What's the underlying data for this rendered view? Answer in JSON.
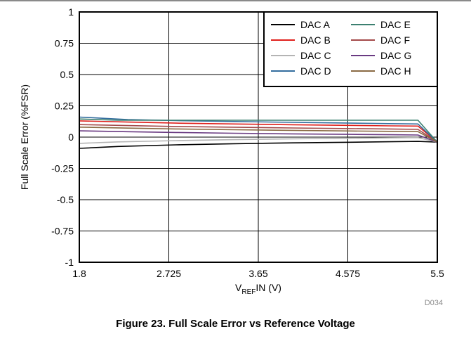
{
  "chart_data": {
    "type": "line",
    "ylabel": "Full Scale Error (%FSR)",
    "xlabel": {
      "base": "V",
      "subscript": "REF",
      "rest": "IN (V)"
    },
    "xlim": [
      1.8,
      5.5
    ],
    "ylim": [
      -1,
      1
    ],
    "x_ticks": [
      "1.8",
      "2.725",
      "3.65",
      "4.575",
      "5.5"
    ],
    "y_ticks": [
      "1",
      "0.75",
      "0.5",
      "0.25",
      "0",
      "-0.25",
      "-0.5",
      "-0.75",
      "-1"
    ],
    "grid": true,
    "legend_placement": "top-right",
    "series": [
      {
        "name": "DAC A",
        "color": "#000000",
        "x": [
          1.8,
          2.2,
          2.8,
          3.4,
          4.0,
          4.6,
          5.0,
          5.3,
          5.5
        ],
        "y": [
          -0.09,
          -0.075,
          -0.062,
          -0.053,
          -0.046,
          -0.041,
          -0.037,
          -0.034,
          -0.04
        ]
      },
      {
        "name": "DAC B",
        "color": "#e0201c",
        "x": [
          1.8,
          2.3,
          2.8,
          3.4,
          4.0,
          4.6,
          5.0,
          5.3,
          5.5
        ],
        "y": [
          0.13,
          0.12,
          0.112,
          0.105,
          0.099,
          0.094,
          0.09,
          0.088,
          -0.04
        ]
      },
      {
        "name": "DAC C",
        "color": "#b4b4b4",
        "x": [
          1.8,
          2.2,
          2.8,
          3.4,
          4.0,
          4.6,
          5.0,
          5.3,
          5.5
        ],
        "y": [
          -0.05,
          -0.038,
          -0.028,
          -0.02,
          -0.014,
          -0.009,
          -0.006,
          -0.004,
          -0.04
        ]
      },
      {
        "name": "DAC D",
        "color": "#336d9e",
        "x": [
          1.8,
          2.3,
          2.8,
          3.4,
          4.0,
          4.6,
          5.0,
          5.3,
          5.5
        ],
        "y": [
          0.16,
          0.14,
          0.132,
          0.125,
          0.118,
          0.112,
          0.108,
          0.105,
          -0.04
        ]
      },
      {
        "name": "DAC E",
        "color": "#3c8070",
        "x": [
          1.8,
          2.2,
          2.8,
          3.4,
          4.0,
          4.6,
          5.0,
          5.3,
          5.5
        ],
        "y": [
          0.145,
          0.135,
          0.135,
          0.135,
          0.135,
          0.135,
          0.135,
          0.135,
          -0.04
        ]
      },
      {
        "name": "DAC F",
        "color": "#a44a4a",
        "x": [
          1.8,
          2.3,
          2.8,
          3.4,
          4.0,
          4.6,
          5.0,
          5.3,
          5.5
        ],
        "y": [
          0.1,
          0.092,
          0.085,
          0.079,
          0.073,
          0.068,
          0.065,
          0.062,
          -0.04
        ]
      },
      {
        "name": "DAC G",
        "color": "#6a3a82",
        "x": [
          1.8,
          2.3,
          2.8,
          3.4,
          4.0,
          4.6,
          5.0,
          5.3,
          5.5
        ],
        "y": [
          0.05,
          0.043,
          0.037,
          0.031,
          0.026,
          0.022,
          0.019,
          0.017,
          -0.04
        ]
      },
      {
        "name": "DAC H",
        "color": "#8a6a44",
        "x": [
          1.8,
          2.3,
          2.8,
          3.4,
          4.0,
          4.6,
          5.0,
          5.3,
          5.5
        ],
        "y": [
          0.08,
          0.072,
          0.065,
          0.059,
          0.054,
          0.049,
          0.046,
          0.044,
          -0.04
        ]
      }
    ],
    "legend_order": [
      "DAC A",
      "DAC E",
      "DAC B",
      "DAC F",
      "DAC C",
      "DAC G",
      "DAC D",
      "DAC H"
    ],
    "figure_id": "D034"
  },
  "caption": "Figure 23. Full Scale Error vs Reference Voltage"
}
